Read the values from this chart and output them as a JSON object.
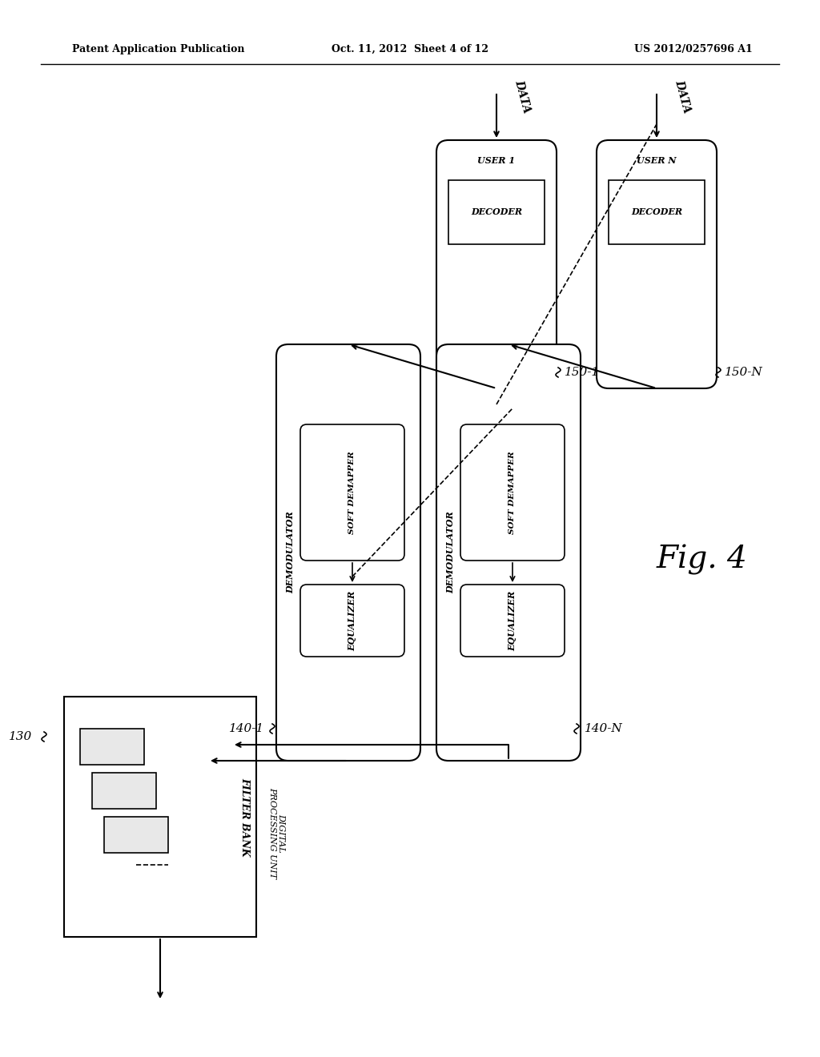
{
  "bg_color": "#ffffff",
  "header_left": "Patent Application Publication",
  "header_mid": "Oct. 11, 2012  Sheet 4 of 12",
  "header_right": "US 2012/0257696 A1",
  "fig_label": "Fig. 4",
  "block_130_label": "130",
  "block_130_title1": "FILTER BANK",
  "block_130_title2": "DIGITAL",
  "block_130_title3": "PROCESSING UNIT",
  "block_140_1_label": "140-1",
  "block_140_1_title": "DEMODULATOR",
  "block_140_1_eq": "EQUALIZER",
  "block_140_1_dm": "SOFT DEMAPPER",
  "block_150_1_label": "150-1",
  "block_150_1_title": "USER 1",
  "block_150_1_dec": "DECODER",
  "block_150_1_data": "DATA",
  "block_140_n_label": "140-N",
  "block_140_n_title": "DEMODULATOR",
  "block_140_n_eq": "EQUALIZER",
  "block_140_n_dm": "SOFT DEMAPPER",
  "block_150_n_label": "150-N",
  "block_150_n_title": "USER N",
  "block_150_n_dec": "DECODER",
  "block_150_n_data": "DATA"
}
